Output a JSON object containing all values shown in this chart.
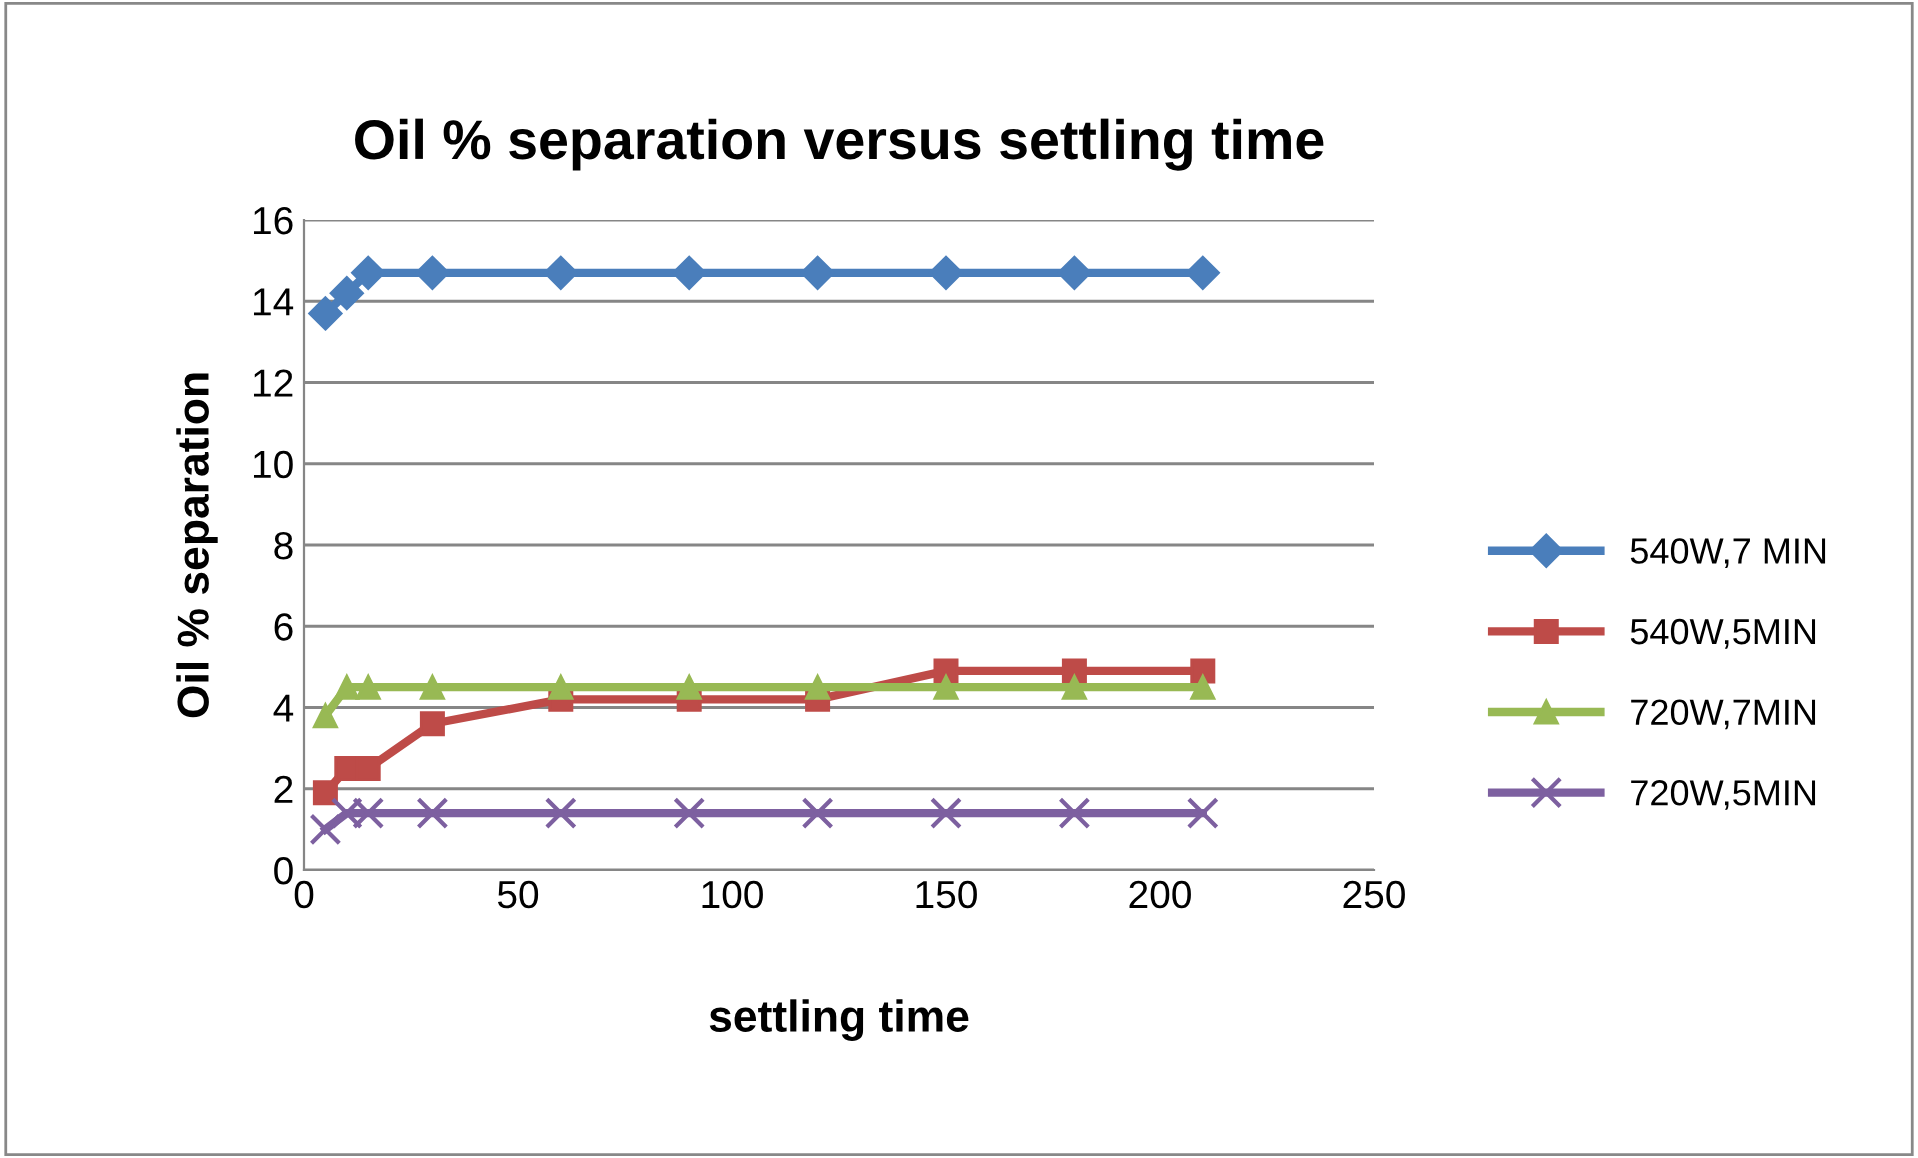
{
  "chart_data": {
    "type": "line",
    "title": "Oil % separation versus settling time",
    "xlabel": "settling time",
    "ylabel": "Oil % separation",
    "x": [
      5,
      10,
      15,
      30,
      60,
      90,
      120,
      150,
      180,
      210
    ],
    "series": [
      {
        "name": "540W,7 MIN",
        "color": "#4a7ebb",
        "marker": "diamond",
        "values": [
          13.7,
          14.2,
          14.7,
          14.7,
          14.7,
          14.7,
          14.7,
          14.7,
          14.7,
          14.7
        ]
      },
      {
        "name": "540W,5MIN",
        "color": "#be4b48",
        "marker": "square",
        "values": [
          1.9,
          2.5,
          2.5,
          3.6,
          4.2,
          4.2,
          4.2,
          4.9,
          4.9,
          4.9
        ]
      },
      {
        "name": "720W,7MIN",
        "color": "#98b954",
        "marker": "triangle",
        "values": [
          3.8,
          4.5,
          4.5,
          4.5,
          4.5,
          4.5,
          4.5,
          4.5,
          4.5,
          4.5
        ]
      },
      {
        "name": "720W,5MIN",
        "color": "#7d60a0",
        "marker": "cross",
        "values": [
          1.0,
          1.4,
          1.4,
          1.4,
          1.4,
          1.4,
          1.4,
          1.4,
          1.4,
          1.4
        ]
      }
    ],
    "xlim": [
      0,
      250
    ],
    "xticks": [
      0,
      50,
      100,
      150,
      200,
      250
    ],
    "ylim": [
      0,
      16
    ],
    "yticks": [
      0,
      2,
      4,
      6,
      8,
      10,
      12,
      14,
      16
    ],
    "grid": "y",
    "legend": "right",
    "line_style": "solid"
  }
}
